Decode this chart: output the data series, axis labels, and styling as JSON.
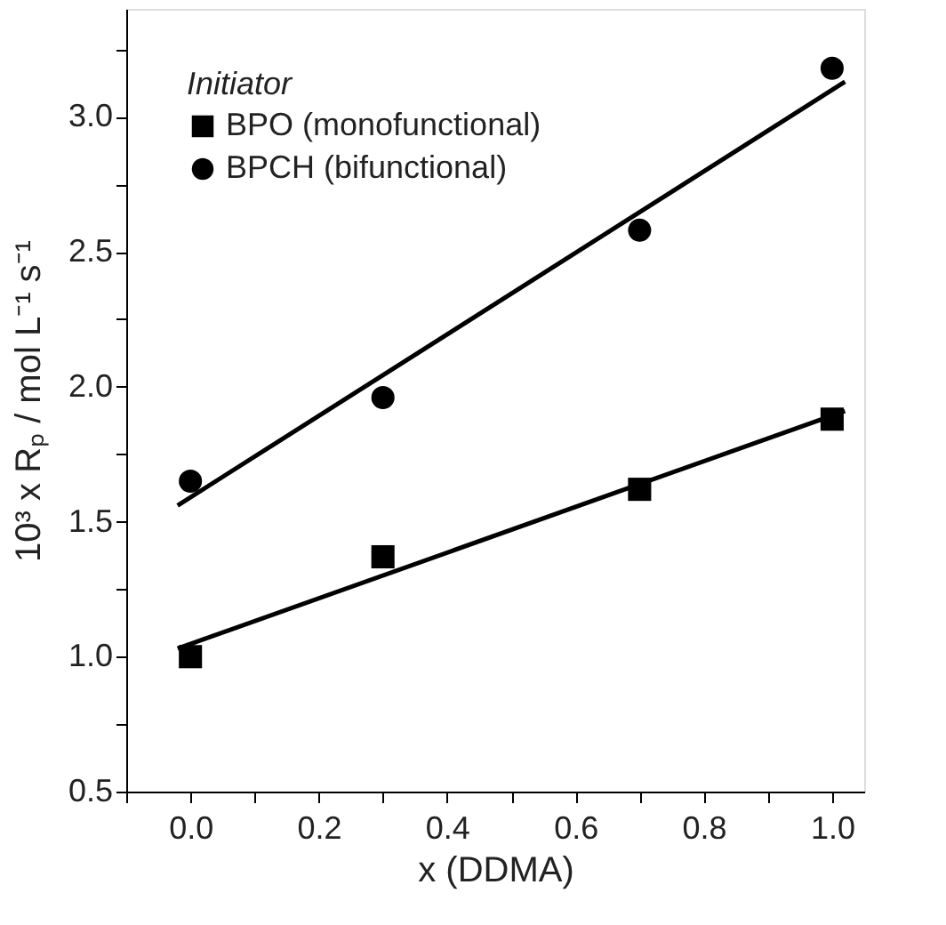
{
  "chart_data": {
    "type": "scatter",
    "xlabel": "x (DDMA)",
    "ylabel": "10³ x Rₚ / mol L⁻¹ s⁻¹",
    "legend_title": "Initiator",
    "legend": "top left",
    "grid": false,
    "xlim": [
      -0.1,
      1.05
    ],
    "ylim": [
      0.5,
      3.4
    ],
    "xticks": [
      {
        "value": -0.1,
        "label": null
      },
      {
        "value": 0,
        "label": "0.0"
      },
      {
        "value": 0.1,
        "label": null
      },
      {
        "value": 0.2,
        "label": "0.2"
      },
      {
        "value": 0.3,
        "label": null
      },
      {
        "value": 0.4,
        "label": "0.4"
      },
      {
        "value": 0.5,
        "label": null
      },
      {
        "value": 0.6,
        "label": "0.6"
      },
      {
        "value": 0.7,
        "label": null
      },
      {
        "value": 0.8,
        "label": "0.8"
      },
      {
        "value": 0.9,
        "label": null
      },
      {
        "value": 1.0,
        "label": "1.0"
      }
    ],
    "yticks": [
      {
        "value": 0.5,
        "label": "0.5"
      },
      {
        "value": 0.75,
        "label": null
      },
      {
        "value": 1.0,
        "label": "1.0"
      },
      {
        "value": 1.25,
        "label": null
      },
      {
        "value": 1.5,
        "label": "1.5"
      },
      {
        "value": 1.75,
        "label": null
      },
      {
        "value": 2.0,
        "label": "2.0"
      },
      {
        "value": 2.25,
        "label": null
      },
      {
        "value": 2.5,
        "label": "2.5"
      },
      {
        "value": 2.75,
        "label": null
      },
      {
        "value": 3.0,
        "label": "3.0"
      },
      {
        "value": 3.25,
        "label": null
      }
    ],
    "series": [
      {
        "name": "BPO (monofunctional)",
        "color": "#000000",
        "marker": "square",
        "x": [
          0,
          0.3,
          0.7,
          1.0
        ],
        "values": [
          1.0,
          1.37,
          1.62,
          1.88
        ]
      },
      {
        "name": "BPCH (bifunctional)",
        "color": "#000000",
        "marker": "circle",
        "x": [
          0,
          0.3,
          0.7,
          1.0
        ],
        "values": [
          1.65,
          1.96,
          2.58,
          3.18
        ]
      },
      {
        "type": "line",
        "color": "#000000",
        "x": [
          -0.02,
          1.02
        ],
        "values": [
          1.03,
          1.91
        ]
      },
      {
        "type": "line",
        "color": "#000000",
        "x": [
          -0.02,
          1.02
        ],
        "values": [
          1.56,
          3.13
        ]
      }
    ]
  }
}
